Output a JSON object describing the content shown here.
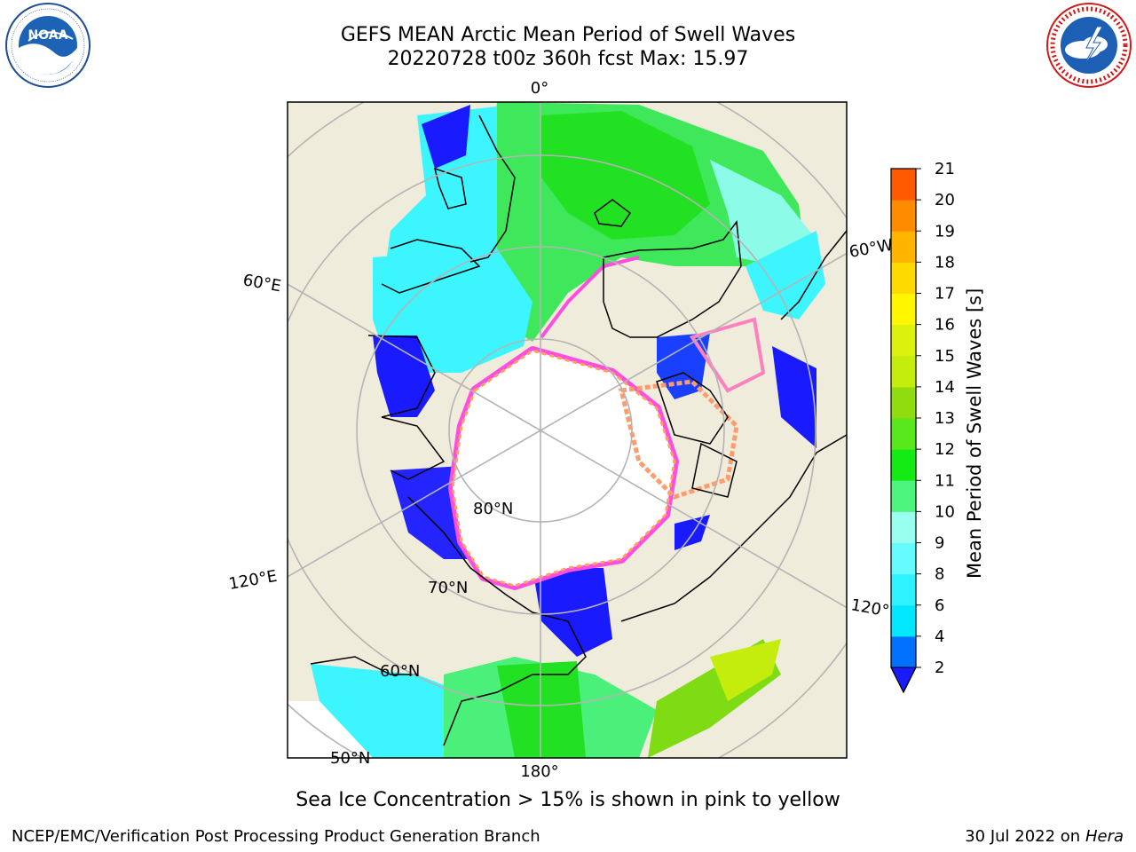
{
  "title": {
    "line1": "GEFS MEAN Arctic Mean Period of Swell Waves",
    "line2": "20220728 t00z 360h fcst   Max: 15.97"
  },
  "logos": {
    "left": {
      "text": "NOAA",
      "ring_text": "NATIONAL OCEANIC AND ATMOSPHERIC ADMINISTRATION · U.S. DEPARTMENT OF COMMERCE"
    },
    "right": {
      "ring_text": "NATIONAL WEATHER SERVICE"
    }
  },
  "map": {
    "projection": "north-polar-stereographic",
    "longitude_labels": [
      "0°",
      "60°E",
      "120°E",
      "180°",
      "120°W",
      "60°W"
    ],
    "latitude_labels": [
      "80°N",
      "70°N",
      "60°N",
      "50°N"
    ],
    "colors": {
      "land": "#efecdc",
      "ice": "#ffffff",
      "grid": "#b4b4b4"
    }
  },
  "colorbar": {
    "label": "Mean Period of Swell Waves [s]",
    "ticks": [
      "2",
      "4",
      "6",
      "8",
      "9",
      "10",
      "11",
      "12",
      "13",
      "14",
      "15",
      "16",
      "17",
      "18",
      "19",
      "20",
      "21"
    ],
    "colors": [
      "#0070ff",
      "#00e7ff",
      "#2ef2ff",
      "#66fbff",
      "#99ffee",
      "#4cf47e",
      "#14eb14",
      "#58e81b",
      "#90dc0e",
      "#c4ec0c",
      "#dbf20e",
      "#fff600",
      "#ffda00",
      "#ffb400",
      "#ff8c00",
      "#ff5a00",
      "#ff2800",
      "#ff0000"
    ],
    "under_color": "#1a1aff"
  },
  "caption": "Sea Ice Concentration > 15% is shown in pink to yellow",
  "footer": {
    "left": "NCEP/EMC/Verification Post Processing Product Generation Branch",
    "date": "30 Jul 2022 on ",
    "host": "Hera"
  }
}
